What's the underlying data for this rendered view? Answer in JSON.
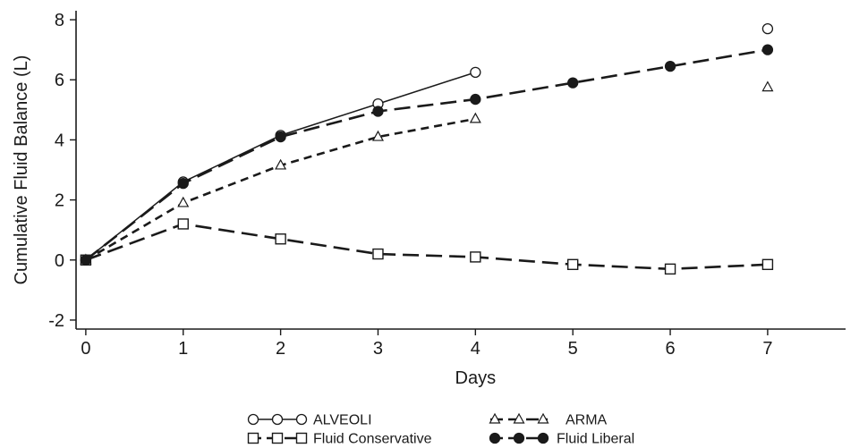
{
  "chart_data": {
    "type": "line",
    "xlabel": "Days",
    "ylabel": "Cumulative Fluid Balance (L)",
    "xlim": [
      -0.1,
      7.8
    ],
    "ylim": [
      -2.3,
      8.3
    ],
    "x_ticks": [
      "0",
      "1",
      "2",
      "3",
      "4",
      "5",
      "6",
      "7"
    ],
    "y_ticks": [
      "-2",
      "0",
      "2",
      "4",
      "6",
      "8"
    ],
    "grid": false,
    "legend_position": "bottom-center",
    "series": [
      {
        "name": "ALVEOLI",
        "marker": "open-circle",
        "line": "solid",
        "points": [
          [
            0,
            0
          ],
          [
            1,
            2.6
          ],
          [
            2,
            4.15
          ],
          [
            3,
            5.2
          ],
          [
            4,
            6.25
          ]
        ],
        "detached_points": [
          [
            7,
            7.7
          ]
        ]
      },
      {
        "name": "ARMA",
        "marker": "open-triangle",
        "line": "short-dash",
        "points": [
          [
            0,
            0
          ],
          [
            1,
            1.9
          ],
          [
            2,
            3.15
          ],
          [
            3,
            4.1
          ],
          [
            4,
            4.7
          ]
        ],
        "detached_points": [
          [
            7,
            5.75
          ]
        ]
      },
      {
        "name": "Fluid Conservative",
        "marker": "open-square",
        "line": "long-dash",
        "points": [
          [
            0,
            0
          ],
          [
            1,
            1.2
          ],
          [
            2,
            0.7
          ],
          [
            3,
            0.2
          ],
          [
            4,
            0.1
          ],
          [
            5,
            -0.15
          ],
          [
            6,
            -0.3
          ],
          [
            7,
            -0.15
          ]
        ],
        "detached_points": []
      },
      {
        "name": "Fluid Liberal",
        "marker": "filled-circle",
        "line": "long-dash",
        "points": [
          [
            0,
            0
          ],
          [
            1,
            2.55
          ],
          [
            2,
            4.1
          ],
          [
            3,
            4.95
          ],
          [
            4,
            5.35
          ],
          [
            5,
            5.9
          ],
          [
            6,
            6.45
          ],
          [
            7,
            7.0
          ]
        ],
        "detached_points": []
      }
    ]
  }
}
